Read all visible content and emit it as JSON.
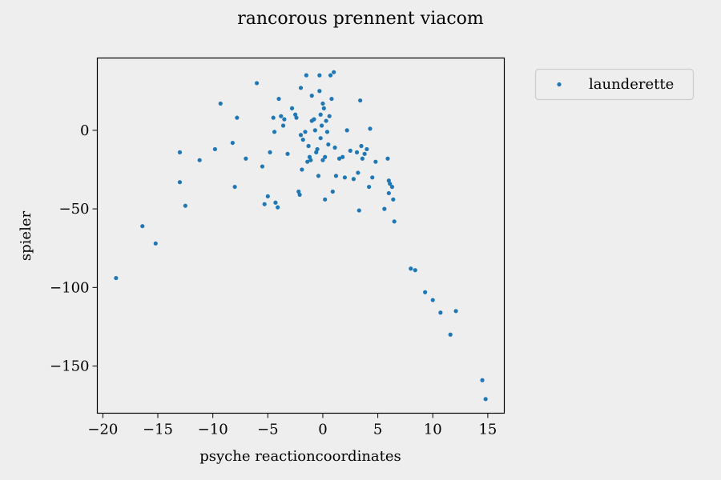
{
  "chart_data": {
    "type": "scatter",
    "title": "rancorous prennent viacom",
    "xlabel": "psyche reactioncoordinates",
    "ylabel": "spieler",
    "xlim": [
      -20.5,
      16.5
    ],
    "ylim": [
      -180,
      46
    ],
    "xticks": [
      -20,
      -15,
      -10,
      -5,
      0,
      5,
      10,
      15
    ],
    "yticks": [
      0,
      -50,
      -100,
      -150
    ],
    "grid": false,
    "legend_placement": "outside-top-right",
    "series": [
      {
        "name": "launderette",
        "color": "#1f77b4",
        "points": [
          [
            -18.8,
            -94
          ],
          [
            -16.4,
            -61
          ],
          [
            -15.2,
            -72
          ],
          [
            -13.0,
            -14
          ],
          [
            -13.0,
            -33
          ],
          [
            -12.5,
            -48
          ],
          [
            -9.8,
            -12
          ],
          [
            -9.3,
            17
          ],
          [
            -11.2,
            -19
          ],
          [
            -8.2,
            -8
          ],
          [
            -7.8,
            8
          ],
          [
            -8.0,
            -36
          ],
          [
            -7.0,
            -18
          ],
          [
            -6.0,
            30
          ],
          [
            -5.5,
            -23
          ],
          [
            -5.3,
            -47
          ],
          [
            -5.0,
            -42
          ],
          [
            -4.8,
            -14
          ],
          [
            -4.5,
            8
          ],
          [
            -4.4,
            -1
          ],
          [
            -4.3,
            -46
          ],
          [
            -4.1,
            -49
          ],
          [
            -4.0,
            20
          ],
          [
            -3.8,
            9
          ],
          [
            -3.6,
            3
          ],
          [
            -3.5,
            7
          ],
          [
            -3.2,
            -15
          ],
          [
            -2.8,
            14
          ],
          [
            -2.5,
            10
          ],
          [
            -2.4,
            8
          ],
          [
            -2.2,
            -39
          ],
          [
            -2.1,
            -41
          ],
          [
            -2.0,
            27
          ],
          [
            -2.0,
            -3
          ],
          [
            -1.9,
            -25
          ],
          [
            -1.8,
            -6
          ],
          [
            -1.6,
            -1
          ],
          [
            -1.5,
            35
          ],
          [
            -1.4,
            -20
          ],
          [
            -1.3,
            -10
          ],
          [
            -1.2,
            -17
          ],
          [
            -1.1,
            -19
          ],
          [
            -1.0,
            22
          ],
          [
            -1.0,
            6
          ],
          [
            -0.8,
            7
          ],
          [
            -0.7,
            0
          ],
          [
            -0.6,
            -14
          ],
          [
            -0.5,
            -12
          ],
          [
            -0.4,
            -29
          ],
          [
            -0.3,
            35
          ],
          [
            -0.3,
            25
          ],
          [
            -0.2,
            10
          ],
          [
            -0.2,
            -5
          ],
          [
            -0.1,
            3
          ],
          [
            0.0,
            17
          ],
          [
            0.1,
            14
          ],
          [
            0.0,
            -19
          ],
          [
            0.2,
            -17
          ],
          [
            0.2,
            -44
          ],
          [
            0.3,
            6
          ],
          [
            0.4,
            -1
          ],
          [
            0.5,
            -9
          ],
          [
            0.6,
            9
          ],
          [
            0.7,
            35
          ],
          [
            0.8,
            20
          ],
          [
            0.9,
            -39
          ],
          [
            1.0,
            37
          ],
          [
            1.1,
            -11
          ],
          [
            1.2,
            -29
          ],
          [
            1.5,
            -18
          ],
          [
            1.8,
            -17
          ],
          [
            2.0,
            -30
          ],
          [
            2.2,
            0
          ],
          [
            2.5,
            -13
          ],
          [
            2.8,
            -31
          ],
          [
            3.1,
            -14
          ],
          [
            3.2,
            -27
          ],
          [
            3.3,
            -51
          ],
          [
            3.4,
            19
          ],
          [
            3.5,
            -10
          ],
          [
            3.6,
            -18
          ],
          [
            3.8,
            -15
          ],
          [
            4.0,
            -12
          ],
          [
            4.2,
            -36
          ],
          [
            4.3,
            1
          ],
          [
            4.5,
            -30
          ],
          [
            4.8,
            -20
          ],
          [
            5.6,
            -50
          ],
          [
            5.9,
            -18
          ],
          [
            6.0,
            -32
          ],
          [
            6.0,
            -40
          ],
          [
            6.1,
            -34
          ],
          [
            6.3,
            -36
          ],
          [
            6.4,
            -44
          ],
          [
            6.5,
            -58
          ],
          [
            8.0,
            -88
          ],
          [
            8.4,
            -89
          ],
          [
            9.3,
            -103
          ],
          [
            10.0,
            -108
          ],
          [
            10.7,
            -116
          ],
          [
            11.6,
            -130
          ],
          [
            12.1,
            -115
          ],
          [
            14.5,
            -159
          ],
          [
            14.8,
            -171
          ]
        ]
      }
    ]
  }
}
